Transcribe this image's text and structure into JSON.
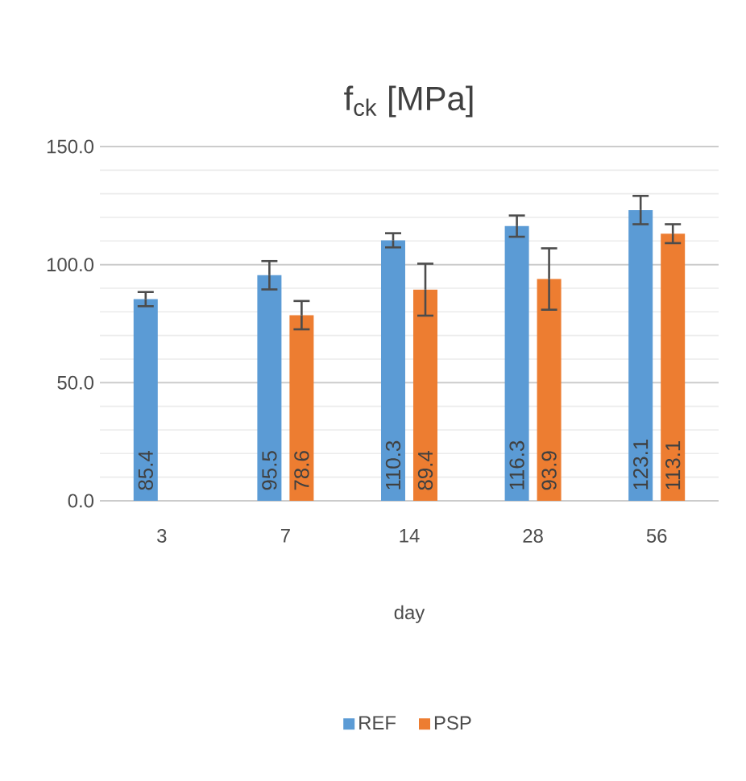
{
  "chart_data": {
    "type": "bar",
    "title": "f$_{ck}$  [MPa]",
    "xlabel": "day",
    "categories": [
      "3",
      "7",
      "14",
      "28",
      "56"
    ],
    "series": [
      {
        "name": "REF",
        "color": "#5b9bd5",
        "values": [
          85.4,
          95.5,
          110.3,
          116.3,
          123.1
        ],
        "errors": [
          3,
          6,
          3,
          4.5,
          6
        ]
      },
      {
        "name": "PSP",
        "color": "#ed7d31",
        "values": [
          null,
          78.6,
          89.4,
          93.9,
          113.1
        ],
        "errors": [
          null,
          6,
          11,
          13,
          4
        ]
      }
    ],
    "ylim": [
      0,
      150
    ],
    "yticks": [
      {
        "value": 0,
        "label": "0.0"
      },
      {
        "value": 50,
        "label": "50.0"
      },
      {
        "value": 100,
        "label": "100.0"
      },
      {
        "value": 150,
        "label": "150.0"
      }
    ],
    "grid": "y",
    "legend": "bottom",
    "data_labels": true
  }
}
